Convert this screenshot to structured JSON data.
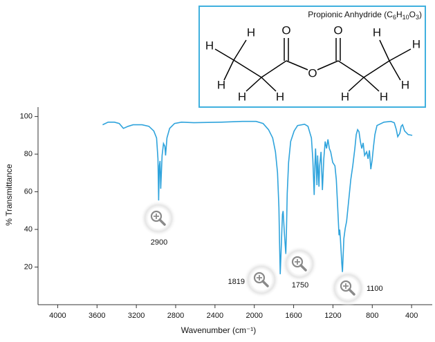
{
  "chart_data": {
    "type": "line",
    "xlabel": "Wavenumber (cm⁻¹)",
    "ylabel": "% Transmittance",
    "x": [
      3543,
      3487,
      3423,
      3374,
      3332,
      3283,
      3233,
      3142,
      3072,
      3022,
      2994,
      2980,
      2973,
      2966,
      2959,
      2952,
      2938,
      2924,
      2910,
      2903,
      2889,
      2861,
      2811,
      2741,
      2615,
      2333,
      2122,
      1982,
      1911,
      1855,
      1813,
      1785,
      1764,
      1750,
      1743,
      1736,
      1729,
      1714,
      1707,
      1693,
      1679,
      1672,
      1665,
      1651,
      1630,
      1595,
      1560,
      1489,
      1454,
      1419,
      1405,
      1391,
      1384,
      1377,
      1363,
      1356,
      1342,
      1335,
      1321,
      1307,
      1293,
      1279,
      1265,
      1251,
      1237,
      1223,
      1202,
      1180,
      1166,
      1152,
      1138,
      1131,
      1124,
      1110,
      1103,
      1089,
      1075,
      1061,
      1047,
      1033,
      1019,
      998,
      977,
      963,
      949,
      935,
      921,
      907,
      893,
      878,
      857,
      843,
      829,
      815,
      801,
      787,
      773,
      752,
      681,
      611,
      576,
      555,
      541,
      520,
      506,
      492,
      471,
      435,
      393
    ],
    "series": [
      {
        "name": "Propionic Anhydride",
        "color": "#2ea3dc",
        "values": [
          95.6,
          97,
          97,
          96.3,
          93.7,
          94.8,
          95.6,
          95.6,
          94.8,
          92.3,
          88.6,
          77.5,
          55.4,
          73.8,
          76.4,
          61.6,
          79.3,
          85.6,
          84.1,
          79.3,
          88.6,
          93.7,
          96.3,
          97,
          96.7,
          97,
          97.4,
          97.4,
          96.3,
          93,
          88.6,
          81.2,
          70.1,
          51.7,
          33.2,
          16.2,
          25.8,
          48,
          49.8,
          36.9,
          26.9,
          40.6,
          59,
          75.6,
          86.7,
          92.3,
          95.2,
          95.9,
          94.8,
          88.6,
          77.5,
          58.3,
          73.8,
          83,
          63.5,
          79.3,
          62.7,
          73.8,
          81.2,
          60.9,
          77.5,
          86.7,
          83,
          87.8,
          83,
          81.2,
          75.6,
          73.8,
          66.4,
          51.7,
          36.9,
          39.9,
          35.1,
          22.1,
          17.3,
          35.1,
          40.6,
          44.3,
          51.7,
          59,
          66.4,
          73.8,
          83,
          90.4,
          93,
          91.9,
          86.7,
          83,
          86,
          79.3,
          81.2,
          77.5,
          82,
          72,
          76.8,
          84.1,
          90.4,
          95.2,
          97,
          97.4,
          96.7,
          93,
          89.3,
          91.1,
          94.8,
          95.6,
          92.3,
          90.4,
          90
        ]
      }
    ],
    "xlim": [
      4200,
      190
    ],
    "xticks": [
      4000,
      3600,
      3200,
      2800,
      2400,
      2000,
      1600,
      1200,
      800,
      400
    ],
    "ylim": [
      0,
      105
    ],
    "yticks": [
      20,
      40,
      60,
      80,
      100
    ],
    "annotations": [
      "2900",
      "1819",
      "1750",
      "1100"
    ]
  },
  "molecule": {
    "title": "Propionic Anhydride",
    "formula_parts": [
      "(C",
      "6",
      "H",
      "10",
      "O",
      "3",
      ")"
    ],
    "atoms": [
      "H",
      "O",
      "O",
      "H",
      "H",
      "H",
      "H",
      "O",
      "H",
      "H",
      "H",
      "H",
      "H"
    ]
  }
}
